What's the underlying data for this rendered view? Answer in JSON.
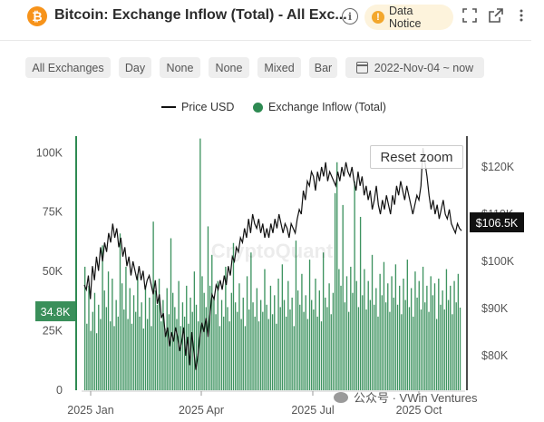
{
  "header": {
    "logo_glyph": "₿",
    "title": "Bitcoin: Exchange Inflow (Total) - All Exc...",
    "info_glyph": "i",
    "notice_label": "Data\nNotice",
    "notice_glyph": "!"
  },
  "toolbar": {
    "chips": [
      "All Exchanges",
      "Day",
      "None",
      "None",
      "Mixed",
      "Bar"
    ],
    "date_range": "2022-Nov-04 ~ now"
  },
  "legend": {
    "price_label": "Price USD",
    "inflow_label": "Exchange Inflow (Total)"
  },
  "reset_zoom_label": "Reset zoom",
  "watermark": {
    "text": "公众号 · VWin Ventures",
    "chart_mark": "CryptoQuant"
  },
  "colors": {
    "bar": "#2e8a52",
    "price_line": "#111111",
    "left_marker": "#3a8f5a",
    "right_marker": "#111111"
  },
  "chart_data": {
    "type": "bar",
    "x": {
      "ticks": [
        "2025 Jan",
        "2025 Apr",
        "2025 Jul",
        "2025 Oct"
      ]
    },
    "left_axis": {
      "ticks": [
        "100K",
        "75K",
        "50K",
        "25K",
        "0"
      ],
      "range": [
        0,
        107000
      ],
      "marker_label": "34.8K",
      "marker_value": 34800
    },
    "right_axis": {
      "ticks": [
        "$120K",
        "$110K",
        "$100K",
        "$90K",
        "$80K"
      ],
      "range": [
        75000,
        128000
      ],
      "marker_label": "$106.5K",
      "marker_value": 106500
    },
    "series": [
      {
        "name": "Exchange Inflow (Total)",
        "values": [
          52000,
          28000,
          44000,
          25000,
          33000,
          41000,
          24000,
          36000,
          30000,
          61000,
          42000,
          35000,
          50000,
          29000,
          47000,
          27000,
          38000,
          31000,
          66000,
          45000,
          34000,
          52000,
          30000,
          43000,
          28000,
          40000,
          33000,
          49000,
          31000,
          37000,
          26000,
          44000,
          30000,
          39000,
          27000,
          71000,
          42000,
          36000,
          47000,
          29000,
          38000,
          26000,
          43000,
          32000,
          64000,
          41000,
          35000,
          30000,
          46000,
          27000,
          37000,
          31000,
          44000,
          28000,
          39000,
          33000,
          50000,
          36000,
          29000,
          106000,
          48000,
          41000,
          35000,
          69000,
          44000,
          57000,
          39000,
          32000,
          46000,
          27000,
          38000,
          31000,
          52000,
          35000,
          29000,
          41000,
          62000,
          37000,
          33000,
          45000,
          30000,
          39000,
          27000,
          48000,
          34000,
          58000,
          37000,
          31000,
          43000,
          29000,
          38000,
          33000,
          51000,
          36000,
          30000,
          44000,
          32000,
          40000,
          28000,
          47000,
          35000,
          53000,
          38000,
          31000,
          46000,
          34000,
          39000,
          27000,
          63000,
          42000,
          36000,
          49000,
          33000,
          40000,
          30000,
          55000,
          38000,
          34000,
          47000,
          31000,
          42000,
          29000,
          58000,
          39000,
          35000,
          45000,
          32000,
          41000,
          83000,
          96000,
          51000,
          44000,
          78000,
          37000,
          48000,
          33000,
          52000,
          41000,
          88000,
          46000,
          35000,
          73000,
          40000,
          51000,
          34000,
          46000,
          38000,
          57000,
          36000,
          43000,
          31000,
          49000,
          40000,
          54000,
          37000,
          45000,
          33000,
          48000,
          39000,
          53000,
          36000,
          44000,
          32000,
          47000,
          38000,
          55000,
          35000,
          43000,
          31000,
          50000,
          39000,
          46000,
          34000,
          52000,
          37000,
          44000,
          33000,
          48000,
          40000,
          45000,
          30000,
          47000,
          36000,
          42000,
          34000,
          51000,
          38000,
          44000,
          32000,
          46000,
          37000,
          49000,
          34800
        ],
        "color": "#2e8a52"
      },
      {
        "name": "Price USD",
        "values": [
          95000,
          94000,
          97000,
          92000,
          99000,
          96000,
          101000,
          98000,
          103000,
          100000,
          104000,
          102000,
          106000,
          104000,
          108000,
          105000,
          107000,
          103000,
          105000,
          101000,
          103000,
          99000,
          101000,
          97000,
          100000,
          98000,
          96000,
          99000,
          96000,
          98000,
          94000,
          96000,
          97000,
          95000,
          93000,
          96000,
          91000,
          93000,
          88000,
          89000,
          84000,
          86000,
          82000,
          85000,
          83000,
          86000,
          84000,
          81000,
          83000,
          86000,
          80000,
          84000,
          78000,
          85000,
          81000,
          77000,
          80000,
          84000,
          87000,
          85000,
          88000,
          84000,
          89000,
          93000,
          92000,
          95000,
          94000,
          96000,
          94000,
          97000,
          95000,
          99000,
          97000,
          101000,
          100000,
          103000,
          102000,
          105000,
          104000,
          107000,
          105000,
          109000,
          106000,
          110000,
          108000,
          107000,
          109000,
          106000,
          108000,
          105000,
          107000,
          105000,
          108000,
          106000,
          109000,
          107000,
          110000,
          108000,
          106000,
          108000,
          107000,
          105000,
          108000,
          107000,
          106000,
          109000,
          111000,
          110000,
          115000,
          113000,
          117000,
          116000,
          119000,
          118000,
          115000,
          119000,
          117000,
          120000,
          118000,
          121000,
          117000,
          119000,
          118000,
          117000,
          116000,
          119000,
          117000,
          120000,
          118000,
          121000,
          119000,
          118000,
          120000,
          117000,
          115000,
          119000,
          116000,
          118000,
          114000,
          116000,
          113000,
          115000,
          111000,
          113000,
          116000,
          112000,
          110000,
          113000,
          111000,
          114000,
          112000,
          110000,
          114000,
          112000,
          116000,
          114000,
          117000,
          115000,
          113000,
          116000,
          114000,
          112000,
          110000,
          112000,
          114000,
          113000,
          116000,
          124000,
          121000,
          118000,
          114000,
          111000,
          113000,
          110000,
          112000,
          109000,
          111000,
          113000,
          110000,
          109000,
          111000,
          108000,
          107000,
          106000,
          108000,
          107000,
          106500
        ],
        "color": "#111111"
      }
    ]
  }
}
